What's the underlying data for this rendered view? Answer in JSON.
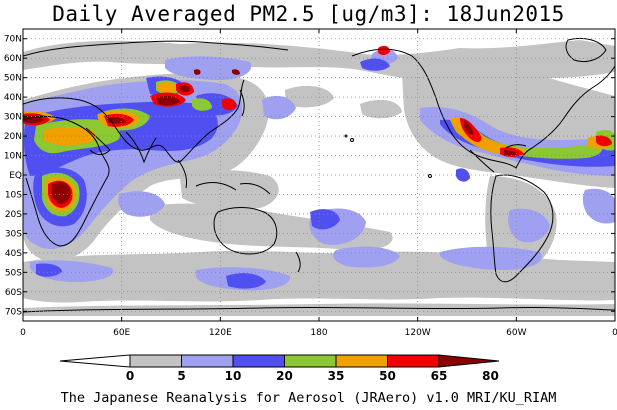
{
  "title": "Daily Averaged PM2.5 [ug/m3]: 18Jun2015",
  "footer": "The Japanese Reanalysis for Aerosol (JRAero) v1.0 MRI/KU_RIAM",
  "axes": {
    "lat_labels": [
      "70N",
      "60N",
      "50N",
      "40N",
      "30N",
      "20N",
      "10N",
      "EQ",
      "10S",
      "20S",
      "30S",
      "40S",
      "50S",
      "60S",
      "70S"
    ],
    "lat_values": [
      70,
      60,
      50,
      40,
      30,
      20,
      10,
      0,
      -10,
      -20,
      -30,
      -40,
      -50,
      -60,
      -70
    ],
    "lon_labels": [
      "0",
      "60E",
      "120E",
      "180",
      "120W",
      "60W",
      "0"
    ],
    "lon_values": [
      0,
      60,
      120,
      180,
      240,
      300,
      360
    ],
    "lon_range": [
      0,
      360
    ],
    "lat_range": [
      -75,
      75
    ],
    "grid": true
  },
  "colorbar": {
    "labels": [
      "0",
      "5",
      "10",
      "20",
      "35",
      "50",
      "65",
      "80"
    ],
    "thresholds": [
      0,
      5,
      10,
      20,
      35,
      50,
      65,
      80
    ],
    "colors": [
      "#ffffff",
      "#c3c3c3",
      "#a0a0f0",
      "#5050f0",
      "#8cc832",
      "#f0a000",
      "#f00000",
      "#8c0000"
    ]
  },
  "palette": {
    "c5": "#c3c3c3",
    "c10": "#a0a0f0",
    "c20": "#5050f0",
    "c35": "#8cc832",
    "c50": "#f0a000",
    "c65": "#f00000",
    "c80": "#8c0000"
  }
}
